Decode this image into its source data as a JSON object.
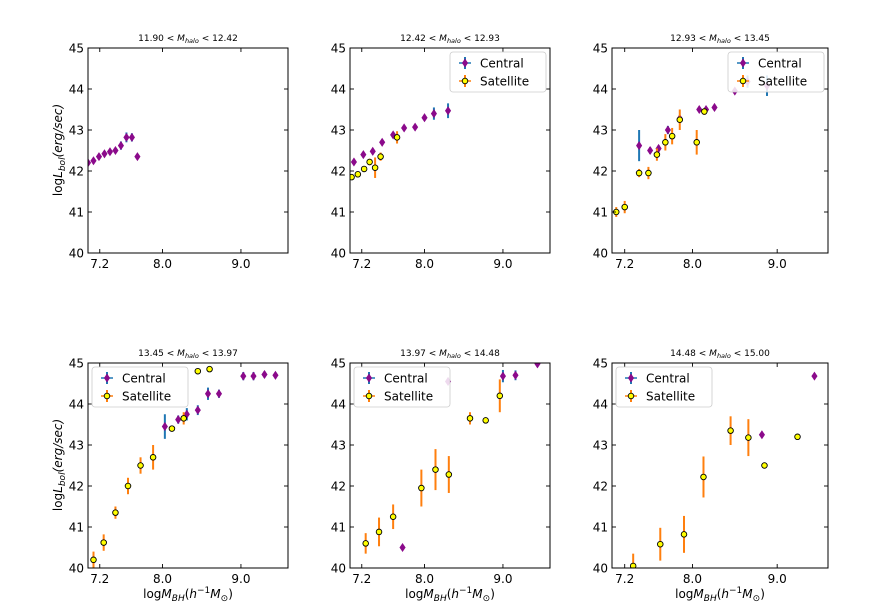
{
  "figure": {
    "ylabel_html": "logL_bol(erg/sec)",
    "xlabel_html": "logM_BH(h^-1 M_⊙)"
  },
  "chart_data": [
    {
      "type": "scatter",
      "title_prefix": "11.90 < ",
      "title_var": "M",
      "title_sub": "halo",
      "title_suffix": " < 12.42",
      "xlim": [
        7.05,
        9.6
      ],
      "ylim": [
        40,
        45
      ],
      "xticks": [
        7.2,
        8.0,
        9.0
      ],
      "xtick_labels": [
        "7.2",
        "8.0",
        "9.0"
      ],
      "yticks": [
        40,
        41,
        42,
        43,
        44,
        45
      ],
      "ytick_labels": [
        "40",
        "41",
        "42",
        "43",
        "44",
        "45"
      ],
      "legend": {
        "placement": "none",
        "entries": []
      },
      "series": [
        {
          "name": "Central",
          "marker": "diamond",
          "color": "#8b0a8b",
          "errcolor": "#1f77b4",
          "points": [
            [
              7.05,
              42.2,
              0.04
            ],
            [
              7.12,
              42.25,
              0.05
            ],
            [
              7.19,
              42.35,
              0.05
            ],
            [
              7.26,
              42.42,
              0.05
            ],
            [
              7.33,
              42.47,
              0.05
            ],
            [
              7.4,
              42.5,
              0.06
            ],
            [
              7.47,
              42.62,
              0.1
            ],
            [
              7.54,
              42.82,
              0.12
            ],
            [
              7.61,
              42.82,
              0.1
            ],
            [
              7.68,
              42.35,
              0.05
            ]
          ]
        }
      ]
    },
    {
      "type": "scatter",
      "title_prefix": "12.42 < ",
      "title_var": "M",
      "title_sub": "halo",
      "title_suffix": " < 12.93",
      "xlim": [
        7.05,
        9.6
      ],
      "ylim": [
        40,
        45
      ],
      "xticks": [
        7.2,
        8.0,
        9.0
      ],
      "xtick_labels": [
        "7.2",
        "8.0",
        "9.0"
      ],
      "yticks": [
        40,
        41,
        42,
        43,
        44,
        45
      ],
      "ytick_labels": [
        "40",
        "41",
        "42",
        "43",
        "44",
        "45"
      ],
      "legend": {
        "placement": "top-right",
        "entries": [
          "Central",
          "Satellite"
        ]
      },
      "series": [
        {
          "name": "Central",
          "marker": "diamond",
          "color": "#8b0a8b",
          "errcolor": "#1f77b4",
          "points": [
            [
              7.1,
              42.22,
              0.06
            ],
            [
              7.22,
              42.4,
              0.05
            ],
            [
              7.34,
              42.48,
              0.05
            ],
            [
              7.46,
              42.7,
              0.06
            ],
            [
              7.6,
              42.88,
              0.05
            ],
            [
              7.74,
              43.05,
              0.06
            ],
            [
              7.88,
              43.07,
              0.05
            ],
            [
              8.0,
              43.3,
              0.06
            ],
            [
              8.12,
              43.4,
              0.15
            ],
            [
              8.3,
              43.47,
              0.18
            ]
          ]
        },
        {
          "name": "Satellite",
          "marker": "circle",
          "color": "#ffff00",
          "errcolor": "#ff7f0e",
          "points": [
            [
              7.07,
              41.85,
              0.06
            ],
            [
              7.15,
              41.92,
              0.06
            ],
            [
              7.23,
              42.05,
              0.06
            ],
            [
              7.3,
              42.22,
              0.08
            ],
            [
              7.37,
              42.08,
              0.25
            ],
            [
              7.44,
              42.35,
              0.1
            ],
            [
              7.65,
              42.82,
              0.15
            ]
          ]
        }
      ]
    },
    {
      "type": "scatter",
      "title_prefix": "12.93 < ",
      "title_var": "M",
      "title_sub": "halo",
      "title_suffix": " < 13.45",
      "xlim": [
        7.05,
        9.6
      ],
      "ylim": [
        40,
        45
      ],
      "xticks": [
        7.2,
        8.0,
        9.0
      ],
      "xtick_labels": [
        "7.2",
        "8.0",
        "9.0"
      ],
      "yticks": [
        40,
        41,
        42,
        43,
        44,
        45
      ],
      "ytick_labels": [
        "40",
        "41",
        "42",
        "43",
        "44",
        "45"
      ],
      "legend": {
        "placement": "top-right",
        "entries": [
          "Central",
          "Satellite"
        ]
      },
      "series": [
        {
          "name": "Central",
          "marker": "diamond",
          "color": "#8b0a8b",
          "errcolor": "#1f77b4",
          "points": [
            [
              7.37,
              42.62,
              0.38
            ],
            [
              7.5,
              42.5,
              0.08
            ],
            [
              7.6,
              42.55,
              0.08
            ],
            [
              7.71,
              43.0,
              0.1
            ],
            [
              7.85,
              43.28,
              0.08
            ],
            [
              8.08,
              43.5,
              0.06
            ],
            [
              8.16,
              43.5,
              0.06
            ],
            [
              8.26,
              43.55,
              0.06
            ],
            [
              8.5,
              43.95,
              0.06
            ],
            [
              8.65,
              44.18,
              0.15
            ],
            [
              8.88,
              44.08,
              0.25
            ]
          ]
        },
        {
          "name": "Satellite",
          "marker": "circle",
          "color": "#ffff00",
          "errcolor": "#ff7f0e",
          "points": [
            [
              7.1,
              41.0,
              0.12
            ],
            [
              7.2,
              41.12,
              0.15
            ],
            [
              7.37,
              41.95,
              0.1
            ],
            [
              7.48,
              41.95,
              0.15
            ],
            [
              7.58,
              42.4,
              0.15
            ],
            [
              7.68,
              42.7,
              0.2
            ],
            [
              7.76,
              42.85,
              0.2
            ],
            [
              7.85,
              43.25,
              0.25
            ],
            [
              8.05,
              42.7,
              0.3
            ],
            [
              8.14,
              43.45,
              0.08
            ]
          ]
        }
      ]
    },
    {
      "type": "scatter",
      "title_prefix": "13.45 < ",
      "title_var": "M",
      "title_sub": "halo",
      "title_suffix": " < 13.97",
      "xlim": [
        7.05,
        9.6
      ],
      "ylim": [
        40,
        45
      ],
      "xticks": [
        7.2,
        8.0,
        9.0
      ],
      "xtick_labels": [
        "7.2",
        "8.0",
        "9.0"
      ],
      "yticks": [
        40,
        41,
        42,
        43,
        44,
        45
      ],
      "ytick_labels": [
        "40",
        "41",
        "42",
        "43",
        "44",
        "45"
      ],
      "legend": {
        "placement": "top-left",
        "entries": [
          "Central",
          "Satellite"
        ]
      },
      "series": [
        {
          "name": "Central",
          "marker": "diamond",
          "color": "#8b0a8b",
          "errcolor": "#1f77b4",
          "points": [
            [
              8.03,
              43.45,
              0.3
            ],
            [
              8.2,
              43.62,
              0.1
            ],
            [
              8.31,
              43.75,
              0.15
            ],
            [
              8.45,
              43.85,
              0.12
            ],
            [
              8.58,
              44.25,
              0.15
            ],
            [
              8.72,
              44.25,
              0.1
            ],
            [
              9.03,
              44.68,
              0.1
            ],
            [
              9.16,
              44.68,
              0.1
            ],
            [
              9.3,
              44.72,
              0.08
            ],
            [
              9.44,
              44.7,
              0.08
            ]
          ]
        },
        {
          "name": "Satellite",
          "marker": "circle",
          "color": "#ffff00",
          "errcolor": "#ff7f0e",
          "points": [
            [
              7.12,
              40.2,
              0.2
            ],
            [
              7.25,
              40.62,
              0.2
            ],
            [
              7.4,
              41.35,
              0.15
            ],
            [
              7.56,
              42.0,
              0.2
            ],
            [
              7.72,
              42.5,
              0.2
            ],
            [
              7.88,
              42.7,
              0.3
            ],
            [
              8.12,
              43.4,
              0.05
            ],
            [
              8.27,
              43.65,
              0.15
            ],
            [
              8.45,
              44.8,
              0.05
            ],
            [
              8.6,
              44.85,
              0.05
            ]
          ]
        }
      ]
    },
    {
      "type": "scatter",
      "title_prefix": "13.97 < ",
      "title_var": "M",
      "title_sub": "halo",
      "title_suffix": " < 14.48",
      "xlim": [
        7.05,
        9.6
      ],
      "ylim": [
        40,
        45
      ],
      "xticks": [
        7.2,
        8.0,
        9.0
      ],
      "xtick_labels": [
        "7.2",
        "8.0",
        "9.0"
      ],
      "yticks": [
        40,
        41,
        42,
        43,
        44,
        45
      ],
      "ytick_labels": [
        "40",
        "41",
        "42",
        "43",
        "44",
        "45"
      ],
      "legend": {
        "placement": "top-left",
        "entries": [
          "Central",
          "Satellite"
        ]
      },
      "series": [
        {
          "name": "Central",
          "marker": "diamond",
          "color": "#8b0a8b",
          "errcolor": "#1f77b4",
          "points": [
            [
              7.72,
              40.5,
              0.05
            ],
            [
              8.3,
              44.55,
              0.05
            ],
            [
              9.0,
              44.68,
              0.15
            ],
            [
              9.16,
              44.7,
              0.12
            ],
            [
              9.44,
              44.98,
              0.08
            ]
          ]
        },
        {
          "name": "Satellite",
          "marker": "circle",
          "color": "#ffff00",
          "errcolor": "#ff7f0e",
          "points": [
            [
              7.25,
              40.6,
              0.25
            ],
            [
              7.42,
              40.88,
              0.35
            ],
            [
              7.6,
              41.25,
              0.3
            ],
            [
              7.96,
              41.95,
              0.45
            ],
            [
              8.14,
              42.4,
              0.5
            ],
            [
              8.31,
              42.28,
              0.45
            ],
            [
              8.58,
              43.65,
              0.15
            ],
            [
              8.78,
              43.6,
              0.05
            ],
            [
              8.96,
              44.2,
              0.4
            ]
          ]
        }
      ]
    },
    {
      "type": "scatter",
      "title_prefix": "14.48 < ",
      "title_var": "M",
      "title_sub": "halo",
      "title_suffix": " < 15.00",
      "xlim": [
        7.05,
        9.6
      ],
      "ylim": [
        40,
        45
      ],
      "xticks": [
        7.2,
        8.0,
        9.0
      ],
      "xtick_labels": [
        "7.2",
        "8.0",
        "9.0"
      ],
      "yticks": [
        40,
        41,
        42,
        43,
        44,
        45
      ],
      "ytick_labels": [
        "40",
        "41",
        "42",
        "43",
        "44",
        "45"
      ],
      "legend": {
        "placement": "top-left",
        "entries": [
          "Central",
          "Satellite"
        ]
      },
      "series": [
        {
          "name": "Central",
          "marker": "diamond",
          "color": "#8b0a8b",
          "errcolor": "#1f77b4",
          "points": [
            [
              8.82,
              43.25,
              0.05
            ],
            [
              9.44,
              44.68,
              0.05
            ]
          ]
        },
        {
          "name": "Satellite",
          "marker": "circle",
          "color": "#ffff00",
          "errcolor": "#ff7f0e",
          "points": [
            [
              7.3,
              40.05,
              0.3
            ],
            [
              7.62,
              40.58,
              0.4
            ],
            [
              7.9,
              40.82,
              0.45
            ],
            [
              8.13,
              42.22,
              0.5
            ],
            [
              8.45,
              43.35,
              0.35
            ],
            [
              8.66,
              43.18,
              0.45
            ],
            [
              8.85,
              42.5,
              0.05
            ],
            [
              9.24,
              43.2,
              0.05
            ]
          ]
        }
      ]
    }
  ]
}
